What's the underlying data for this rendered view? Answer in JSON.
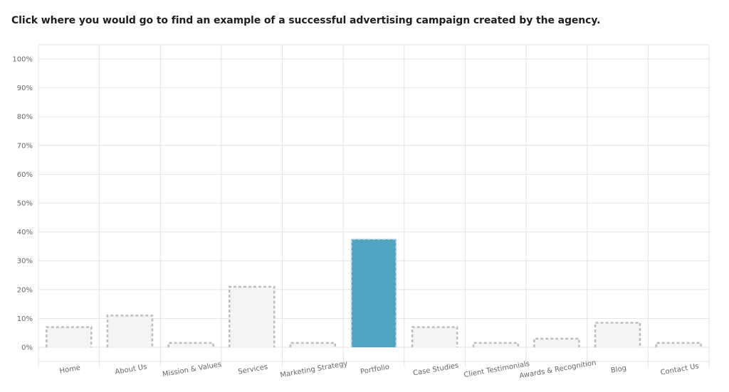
{
  "question": "Click where you would go to find an example of a successful advertising campaign created by the agency.",
  "colors": {
    "highlight_fill": "#51a3c2",
    "bar_fill": "#f4f4f4",
    "bar_outline": "#bdbdbd",
    "grid": "#e3e3e3",
    "text": "#666666"
  },
  "chart_data": {
    "type": "bar",
    "categories": [
      "Home",
      "About Us",
      "Mission & Values",
      "Services",
      "Marketing Strategy",
      "Portfolio",
      "Case Studies",
      "Client Testimonials",
      "Awards & Recognition",
      "Blog",
      "Contact Us"
    ],
    "values": [
      7,
      11,
      1.5,
      21,
      1.5,
      37.5,
      7,
      1.5,
      3,
      8.5,
      1.5
    ],
    "highlighted": "Portfolio",
    "unit": "%",
    "ylim": [
      0,
      100
    ],
    "yticks": [
      0,
      10,
      20,
      30,
      40,
      50,
      60,
      70,
      80,
      90,
      100
    ],
    "ytick_labels": [
      "0%",
      "10%",
      "20%",
      "30%",
      "40%",
      "50%",
      "60%",
      "70%",
      "80%",
      "90%",
      "100%"
    ],
    "grid": true,
    "xlabel": "",
    "ylabel": ""
  }
}
